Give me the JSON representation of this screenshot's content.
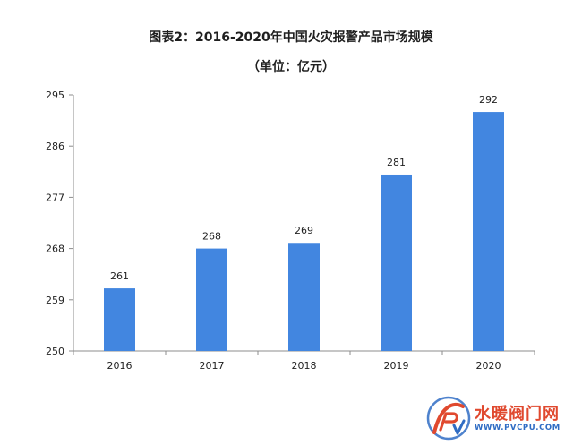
{
  "chart_data": {
    "type": "bar",
    "title": "图表2：2016-2020年中国火灾报警产品市场规模",
    "subtitle": "（单位：亿元）",
    "categories": [
      "2016",
      "2017",
      "2018",
      "2019",
      "2020"
    ],
    "values": [
      261,
      268,
      269,
      281,
      292
    ],
    "ylim": [
      250,
      295
    ],
    "yticks": [
      250,
      259,
      268,
      277,
      286,
      295
    ],
    "xlabel": "",
    "ylabel": "",
    "grid": false,
    "bar_color": "#4286e0",
    "data_labels": true
  },
  "watermark": {
    "name": "水暖阀门网",
    "url": "WWW.PVCPU.COM",
    "logo_icon": "pv-logo-icon",
    "primary_color": "#e0492f",
    "secondary_color": "#2f6cc4"
  }
}
